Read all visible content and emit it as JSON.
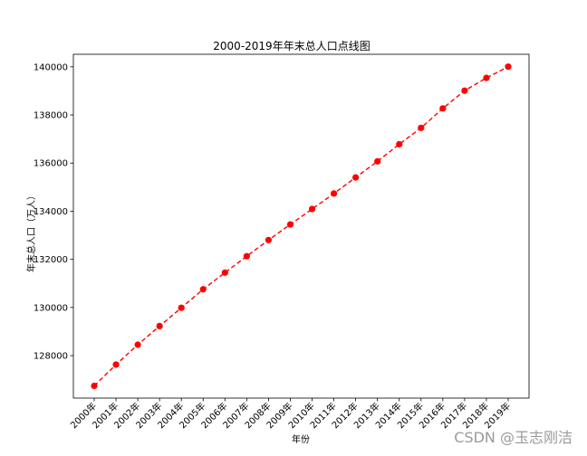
{
  "chart_data": {
    "type": "line",
    "title": "2000-2019年年末总人口点线图",
    "xlabel": "年份",
    "ylabel": "年末总人口（万人）",
    "categories": [
      "2000年",
      "2001年",
      "2002年",
      "2003年",
      "2004年",
      "2005年",
      "2006年",
      "2007年",
      "2008年",
      "2009年",
      "2010年",
      "2011年",
      "2012年",
      "2013年",
      "2014年",
      "2015年",
      "2016年",
      "2017年",
      "2018年",
      "2019年"
    ],
    "series": [
      {
        "values": [
          126743,
          127627,
          128453,
          129227,
          129988,
          130756,
          131448,
          132129,
          132802,
          133450,
          134091,
          134735,
          135404,
          136072,
          136782,
          137462,
          138271,
          139008,
          139538,
          140005
        ],
        "color": "#ff0000",
        "line_style": "dashed",
        "marker": "circle"
      }
    ],
    "yticks": [
      128000,
      130000,
      132000,
      134000,
      136000,
      138000,
      140000
    ],
    "ylim": [
      126235,
      140520
    ],
    "grid": false,
    "legend": "none"
  },
  "watermark": "CSDN @玉志刚洁"
}
